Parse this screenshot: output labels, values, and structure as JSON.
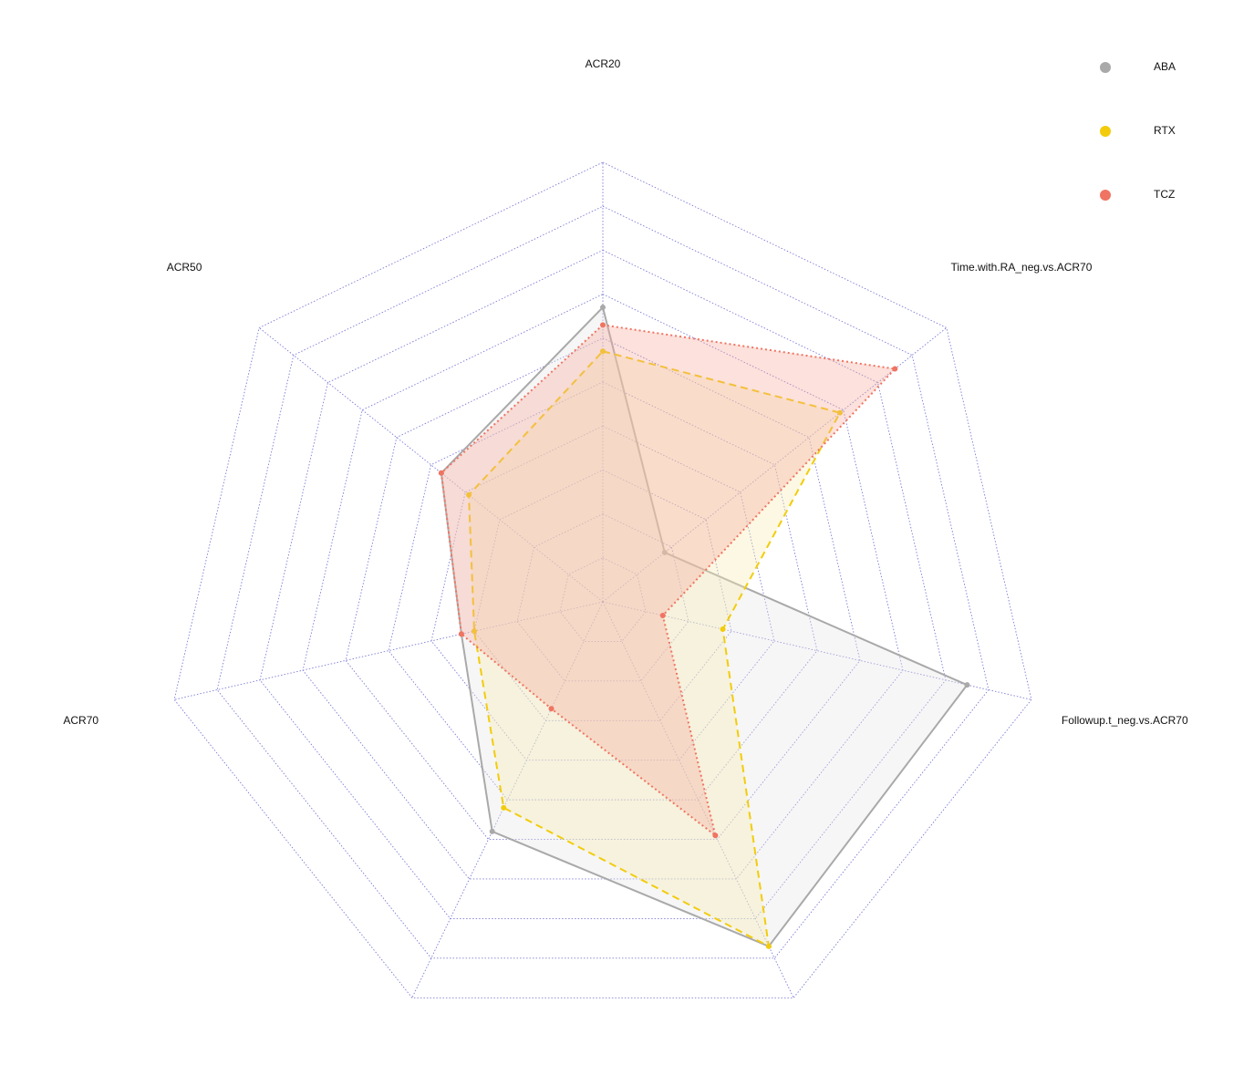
{
  "chart_data": {
    "type": "radar",
    "categories": [
      "ACR20",
      "Time.with.RA_neg.vs.ACR70",
      "Followup.t_neg.vs.ACR70",
      null,
      null,
      "ACR70",
      "ACR50"
    ],
    "series": [
      {
        "name": "ABA",
        "color": "#a9a9a9",
        "fill": "#e6e6e6",
        "linestyle": "solid",
        "values": [
          6.7,
          1.8,
          8.5,
          8.7,
          5.8,
          3.3,
          4.7
        ]
      },
      {
        "name": "RTX",
        "color": "#f2cc0c",
        "fill": "#f7eab0",
        "linestyle": "dashed",
        "values": [
          5.7,
          6.9,
          2.8,
          8.7,
          5.2,
          3.0,
          3.9
        ]
      },
      {
        "name": "TCZ",
        "color": "#f07462",
        "fill": "#f6a99a",
        "linestyle": "dotted",
        "values": [
          6.3,
          8.5,
          1.4,
          5.9,
          2.7,
          3.3,
          4.7
        ]
      }
    ],
    "ylim": [
      0,
      10
    ],
    "yticks": [
      1,
      2,
      3,
      4,
      5,
      6,
      7,
      8,
      9,
      10
    ],
    "grid": true,
    "legend": "top-right"
  }
}
